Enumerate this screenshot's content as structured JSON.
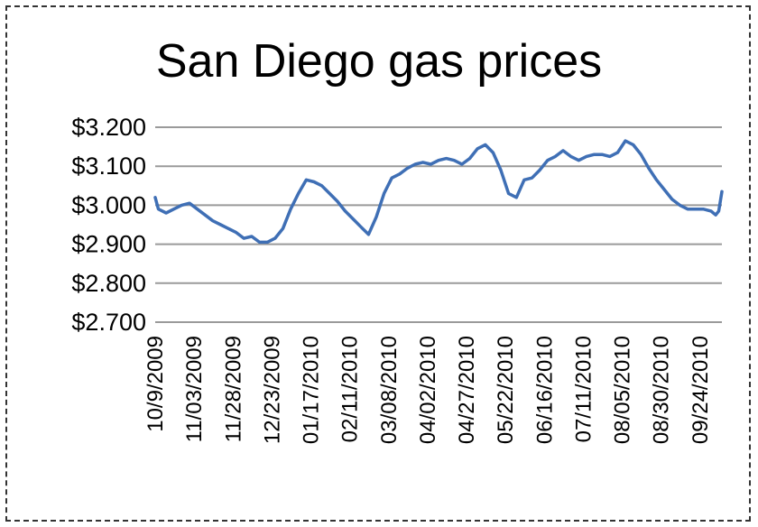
{
  "chart_data": {
    "type": "line",
    "title": "San Diego gas prices",
    "xlabel": "",
    "ylabel": "",
    "grid": true,
    "ylim": [
      2.7,
      3.2
    ],
    "y_ticks": [
      "$3.200",
      "$3.100",
      "$3.000",
      "$2.900",
      "$2.800",
      "$2.700"
    ],
    "x_ticks": [
      "10/9/2009",
      "11/03/2009",
      "11/28/2009",
      "12/23/2009",
      "01/17/2010",
      "02/11/2010",
      "03/08/2010",
      "04/02/2010",
      "04/27/2010",
      "05/22/2010",
      "06/16/2010",
      "07/11/2010",
      "08/05/2010",
      "08/30/2010",
      "09/24/2010"
    ],
    "series": [
      {
        "color": "#3f6fb5",
        "points": [
          [
            "10/9/2009",
            3.02
          ],
          [
            "10/11/2009",
            2.99
          ],
          [
            "10/16/2009",
            2.98
          ],
          [
            "10/21/2009",
            2.99
          ],
          [
            "10/26/2009",
            3.0
          ],
          [
            "10/31/2009",
            3.005
          ],
          [
            "11/05/2009",
            2.99
          ],
          [
            "11/10/2009",
            2.975
          ],
          [
            "11/15/2009",
            2.96
          ],
          [
            "11/20/2009",
            2.95
          ],
          [
            "11/25/2009",
            2.94
          ],
          [
            "11/30/2009",
            2.93
          ],
          [
            "12/05/2009",
            2.915
          ],
          [
            "12/10/2009",
            2.92
          ],
          [
            "12/15/2009",
            2.905
          ],
          [
            "12/20/2009",
            2.905
          ],
          [
            "12/25/2009",
            2.915
          ],
          [
            "12/30/2009",
            2.94
          ],
          [
            "01/04/2010",
            2.99
          ],
          [
            "01/09/2010",
            3.03
          ],
          [
            "01/14/2010",
            3.065
          ],
          [
            "01/19/2010",
            3.06
          ],
          [
            "01/24/2010",
            3.05
          ],
          [
            "01/29/2010",
            3.03
          ],
          [
            "02/03/2010",
            3.01
          ],
          [
            "02/08/2010",
            2.985
          ],
          [
            "02/13/2010",
            2.965
          ],
          [
            "02/18/2010",
            2.945
          ],
          [
            "02/23/2010",
            2.925
          ],
          [
            "02/28/2010",
            2.97
          ],
          [
            "03/05/2010",
            3.03
          ],
          [
            "03/10/2010",
            3.07
          ],
          [
            "03/15/2010",
            3.08
          ],
          [
            "03/20/2010",
            3.095
          ],
          [
            "03/25/2010",
            3.105
          ],
          [
            "03/30/2010",
            3.11
          ],
          [
            "04/04/2010",
            3.105
          ],
          [
            "04/09/2010",
            3.115
          ],
          [
            "04/14/2010",
            3.12
          ],
          [
            "04/19/2010",
            3.115
          ],
          [
            "04/24/2010",
            3.105
          ],
          [
            "04/29/2010",
            3.12
          ],
          [
            "05/04/2010",
            3.145
          ],
          [
            "05/09/2010",
            3.155
          ],
          [
            "05/14/2010",
            3.135
          ],
          [
            "05/19/2010",
            3.09
          ],
          [
            "05/24/2010",
            3.03
          ],
          [
            "05/29/2010",
            3.02
          ],
          [
            "06/03/2010",
            3.065
          ],
          [
            "06/08/2010",
            3.07
          ],
          [
            "06/13/2010",
            3.09
          ],
          [
            "06/18/2010",
            3.115
          ],
          [
            "06/23/2010",
            3.125
          ],
          [
            "06/28/2010",
            3.14
          ],
          [
            "07/03/2010",
            3.125
          ],
          [
            "07/08/2010",
            3.115
          ],
          [
            "07/13/2010",
            3.125
          ],
          [
            "07/18/2010",
            3.13
          ],
          [
            "07/23/2010",
            3.13
          ],
          [
            "07/28/2010",
            3.125
          ],
          [
            "08/02/2010",
            3.135
          ],
          [
            "08/07/2010",
            3.165
          ],
          [
            "08/12/2010",
            3.155
          ],
          [
            "08/17/2010",
            3.13
          ],
          [
            "08/22/2010",
            3.095
          ],
          [
            "08/27/2010",
            3.065
          ],
          [
            "09/01/2010",
            3.04
          ],
          [
            "09/06/2010",
            3.015
          ],
          [
            "09/11/2010",
            3.0
          ],
          [
            "09/16/2010",
            2.99
          ],
          [
            "09/21/2010",
            2.99
          ],
          [
            "09/26/2010",
            2.99
          ],
          [
            "10/01/2010",
            2.985
          ],
          [
            "10/04/2010",
            2.975
          ],
          [
            "10/06/2010",
            2.985
          ],
          [
            "10/08/2010",
            3.035
          ]
        ]
      }
    ]
  }
}
